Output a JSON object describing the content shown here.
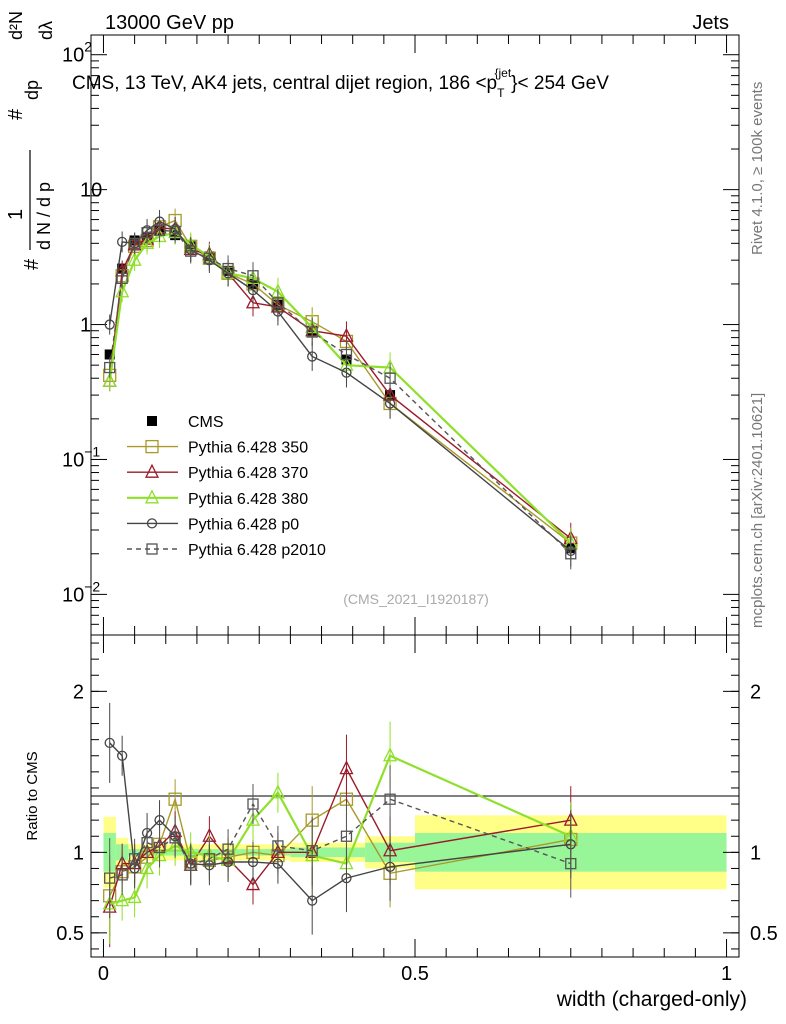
{
  "header": {
    "left": "13000 GeV pp",
    "right": "Jets"
  },
  "side_labels": {
    "rivet": "Rivet 4.1.0, ≥ 100k events",
    "mcplots": "mcplots.cern.ch [arXiv:2401.10621]"
  },
  "watermark": "(CMS_2021_I1920187)",
  "colors": {
    "cms": "#000000",
    "p350": "#a89a2a",
    "p370": "#9b1a2a",
    "p380": "#8ee02a",
    "p0": "#444444",
    "p2010": "#555555",
    "band_inner": "#98f598",
    "band_outer": "#ffff88"
  },
  "chart_data": [
    {
      "type": "line",
      "title": "CMS, 13 TeV, AK4 jets, central dijet region, 186 <p_T^{jet}> < 254 GeV",
      "title_parts": {
        "main": "CMS, 13 TeV, AK4 jets, central dijet region, 186 <p",
        "sub": "T",
        "sup": "{jet",
        "tail": "}< 254 GeV"
      },
      "ylabel": "(1 / dN/dp_T) dN^2 / (dp_T dλ)",
      "ylabel_parts": {
        "num": "d²N",
        "num2": "dp",
        "num3": "dλ",
        "den": "d N / d p",
        "sub": "T",
        "one": "1",
        "hash": "#"
      },
      "yscale": "log",
      "ylim": [
        0.005,
        140
      ],
      "xlim": [
        -0.02,
        1.02
      ],
      "y_ticks": [
        {
          "value": 100,
          "base": "10",
          "exp": "2"
        },
        {
          "value": 10,
          "base": "10",
          "exp": ""
        },
        {
          "value": 1,
          "base": "1",
          "exp": ""
        },
        {
          "value": 0.1,
          "base": "10",
          "exp": "−1"
        },
        {
          "value": 0.01,
          "base": "10",
          "exp": "−2"
        }
      ],
      "x": [
        0.01,
        0.03,
        0.05,
        0.07,
        0.09,
        0.115,
        0.14,
        0.17,
        0.2,
        0.24,
        0.28,
        0.335,
        0.39,
        0.46,
        0.75
      ],
      "series": [
        {
          "name": "CMS",
          "key": "cms",
          "marker": "filled-square",
          "values": [
            0.6,
            2.6,
            4.2,
            4.4,
            5.0,
            4.6,
            3.8,
            3.2,
            2.5,
            2.0,
            1.4,
            0.9,
            0.55,
            0.3,
            0.022
          ]
        },
        {
          "name": "Pythia 6.428 350",
          "key": "p350",
          "marker": "open-square",
          "values": [
            0.42,
            2.3,
            3.8,
            4.2,
            5.3,
            5.9,
            3.8,
            3.1,
            2.4,
            2.0,
            1.4,
            1.05,
            0.75,
            0.26,
            0.024
          ]
        },
        {
          "name": "Pythia 6.428 370",
          "key": "p370",
          "marker": "open-triangle",
          "values": [
            0.38,
            2.5,
            3.9,
            4.3,
            5.2,
            5.1,
            3.6,
            3.3,
            2.4,
            1.45,
            1.35,
            0.9,
            0.82,
            0.3,
            0.026
          ]
        },
        {
          "name": "Pythia 6.428 380",
          "key": "p380",
          "marker": "open-triangle",
          "values": [
            0.38,
            1.75,
            3.0,
            4.0,
            4.5,
            4.8,
            3.9,
            3.2,
            2.4,
            2.2,
            1.75,
            0.95,
            0.5,
            0.48,
            0.024
          ]
        },
        {
          "name": "Pythia 6.428 p0",
          "key": "p0",
          "marker": "open-circle",
          "values": [
            1.0,
            4.1,
            4.0,
            5.0,
            5.8,
            5.1,
            3.6,
            3.0,
            2.4,
            1.8,
            1.25,
            0.58,
            0.44,
            0.26,
            0.021
          ]
        },
        {
          "name": "Pythia 6.428 p2010",
          "key": "p2010",
          "marker": "open-square-dashed",
          "values": [
            0.48,
            2.2,
            4.0,
            4.8,
            5.0,
            4.9,
            3.5,
            3.1,
            2.6,
            2.3,
            1.45,
            0.88,
            0.6,
            0.4,
            0.02
          ]
        }
      ],
      "legend": [
        {
          "label": "CMS",
          "key": "cms"
        },
        {
          "label": "Pythia 6.428 350",
          "key": "p350"
        },
        {
          "label": "Pythia 6.428 370",
          "key": "p370"
        },
        {
          "label": "Pythia 6.428 380",
          "key": "p380"
        },
        {
          "label": "Pythia 6.428 p0",
          "key": "p0"
        },
        {
          "label": "Pythia 6.428 p2010",
          "key": "p2010"
        }
      ]
    },
    {
      "type": "line",
      "ylabel": "Ratio to CMS",
      "xlabel": "width (charged-only)",
      "ylim": [
        0.35,
        2.35
      ],
      "xlim": [
        -0.02,
        1.02
      ],
      "y_ticks": [
        {
          "value": 2,
          "label": "2"
        },
        {
          "value": 1,
          "label": "1"
        },
        {
          "value": 0.5,
          "label": "0.5"
        }
      ],
      "x_ticks": [
        {
          "value": 0,
          "label": "0"
        },
        {
          "value": 0.5,
          "label": "0.5"
        },
        {
          "value": 1,
          "label": "1"
        }
      ],
      "x": [
        0.01,
        0.03,
        0.05,
        0.07,
        0.09,
        0.115,
        0.14,
        0.17,
        0.2,
        0.24,
        0.28,
        0.335,
        0.39,
        0.46,
        0.75
      ],
      "bands": [
        {
          "x0": 0.0,
          "x1": 0.02,
          "inner": 0.12,
          "outer": 0.22
        },
        {
          "x0": 0.02,
          "x1": 0.04,
          "inner": 0.05,
          "outer": 0.09
        },
        {
          "x0": 0.04,
          "x1": 0.3,
          "inner": 0.02,
          "outer": 0.05
        },
        {
          "x0": 0.3,
          "x1": 0.42,
          "inner": 0.03,
          "outer": 0.06
        },
        {
          "x0": 0.42,
          "x1": 0.5,
          "inner": 0.06,
          "outer": 0.1
        },
        {
          "x0": 0.5,
          "x1": 1.0,
          "inner": 0.12,
          "outer": 0.23
        }
      ],
      "series": [
        {
          "name": "Pythia 6.428 350",
          "key": "p350",
          "values": [
            0.73,
            0.88,
            0.91,
            0.97,
            1.05,
            1.33,
            0.94,
            0.95,
            0.97,
            1.0,
            0.98,
            1.2,
            1.33,
            0.87,
            1.08
          ]
        },
        {
          "name": "Pythia 6.428 370",
          "key": "p370",
          "values": [
            0.66,
            0.93,
            0.93,
            1.0,
            1.04,
            1.13,
            0.92,
            1.1,
            0.96,
            0.8,
            1.0,
            1.0,
            1.52,
            1.01,
            1.2
          ]
        },
        {
          "name": "Pythia 6.428 380",
          "key": "p380",
          "values": [
            0.68,
            0.7,
            0.72,
            0.9,
            0.98,
            1.04,
            1.0,
            0.98,
            0.95,
            1.2,
            1.37,
            0.98,
            0.93,
            1.6,
            1.1
          ]
        },
        {
          "name": "Pythia 6.428 p0",
          "key": "p0",
          "values": [
            1.68,
            1.6,
            0.9,
            1.12,
            1.2,
            1.1,
            0.93,
            0.92,
            0.94,
            0.94,
            0.93,
            0.7,
            0.84,
            0.91,
            1.05
          ]
        },
        {
          "name": "Pythia 6.428 p2010",
          "key": "p2010",
          "values": [
            0.84,
            0.86,
            0.96,
            1.06,
            1.03,
            1.09,
            0.92,
            0.96,
            1.02,
            1.3,
            1.04,
            1.01,
            1.1,
            1.33,
            0.93
          ]
        }
      ]
    }
  ]
}
